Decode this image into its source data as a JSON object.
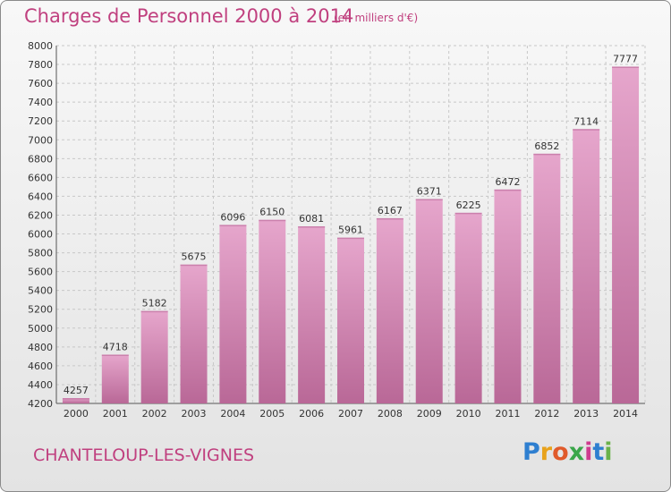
{
  "header": {
    "title": "Charges de Personnel 2000 à 2014",
    "subtitle": "(en milliers d'€)"
  },
  "footer": {
    "commune": "CHANTELOUP-LES-VIGNES",
    "logo": [
      "P",
      "r",
      "o",
      "x",
      "i",
      "t",
      "i"
    ],
    "logo_colors": [
      "#2e7fd0",
      "#e8a21b",
      "#e05a2b",
      "#3aa64a",
      "#cf3b8f",
      "#2e7fd0",
      "#6ab24a"
    ]
  },
  "colors": {
    "bar_light": "#e6a6cc",
    "bar_dark": "#b96897",
    "accent": "#c0407f"
  },
  "chart_data": {
    "type": "bar",
    "title": "Charges de Personnel 2000 à 2014",
    "subtitle": "(en milliers d'€)",
    "categories": [
      "2000",
      "2001",
      "2002",
      "2003",
      "2004",
      "2005",
      "2006",
      "2007",
      "2008",
      "2009",
      "2010",
      "2011",
      "2012",
      "2013",
      "2014"
    ],
    "values": [
      4257,
      4718,
      5182,
      5675,
      6096,
      6150,
      6081,
      5961,
      6167,
      6371,
      6225,
      6472,
      6852,
      7114,
      7777
    ],
    "ylim": [
      4200,
      8000
    ],
    "yticks": [
      4200,
      4400,
      4600,
      4800,
      5000,
      5200,
      5400,
      5600,
      5800,
      6000,
      6200,
      6400,
      6600,
      6800,
      7000,
      7200,
      7400,
      7600,
      7800,
      8000
    ],
    "grid": true,
    "xlabel": "",
    "ylabel": ""
  }
}
